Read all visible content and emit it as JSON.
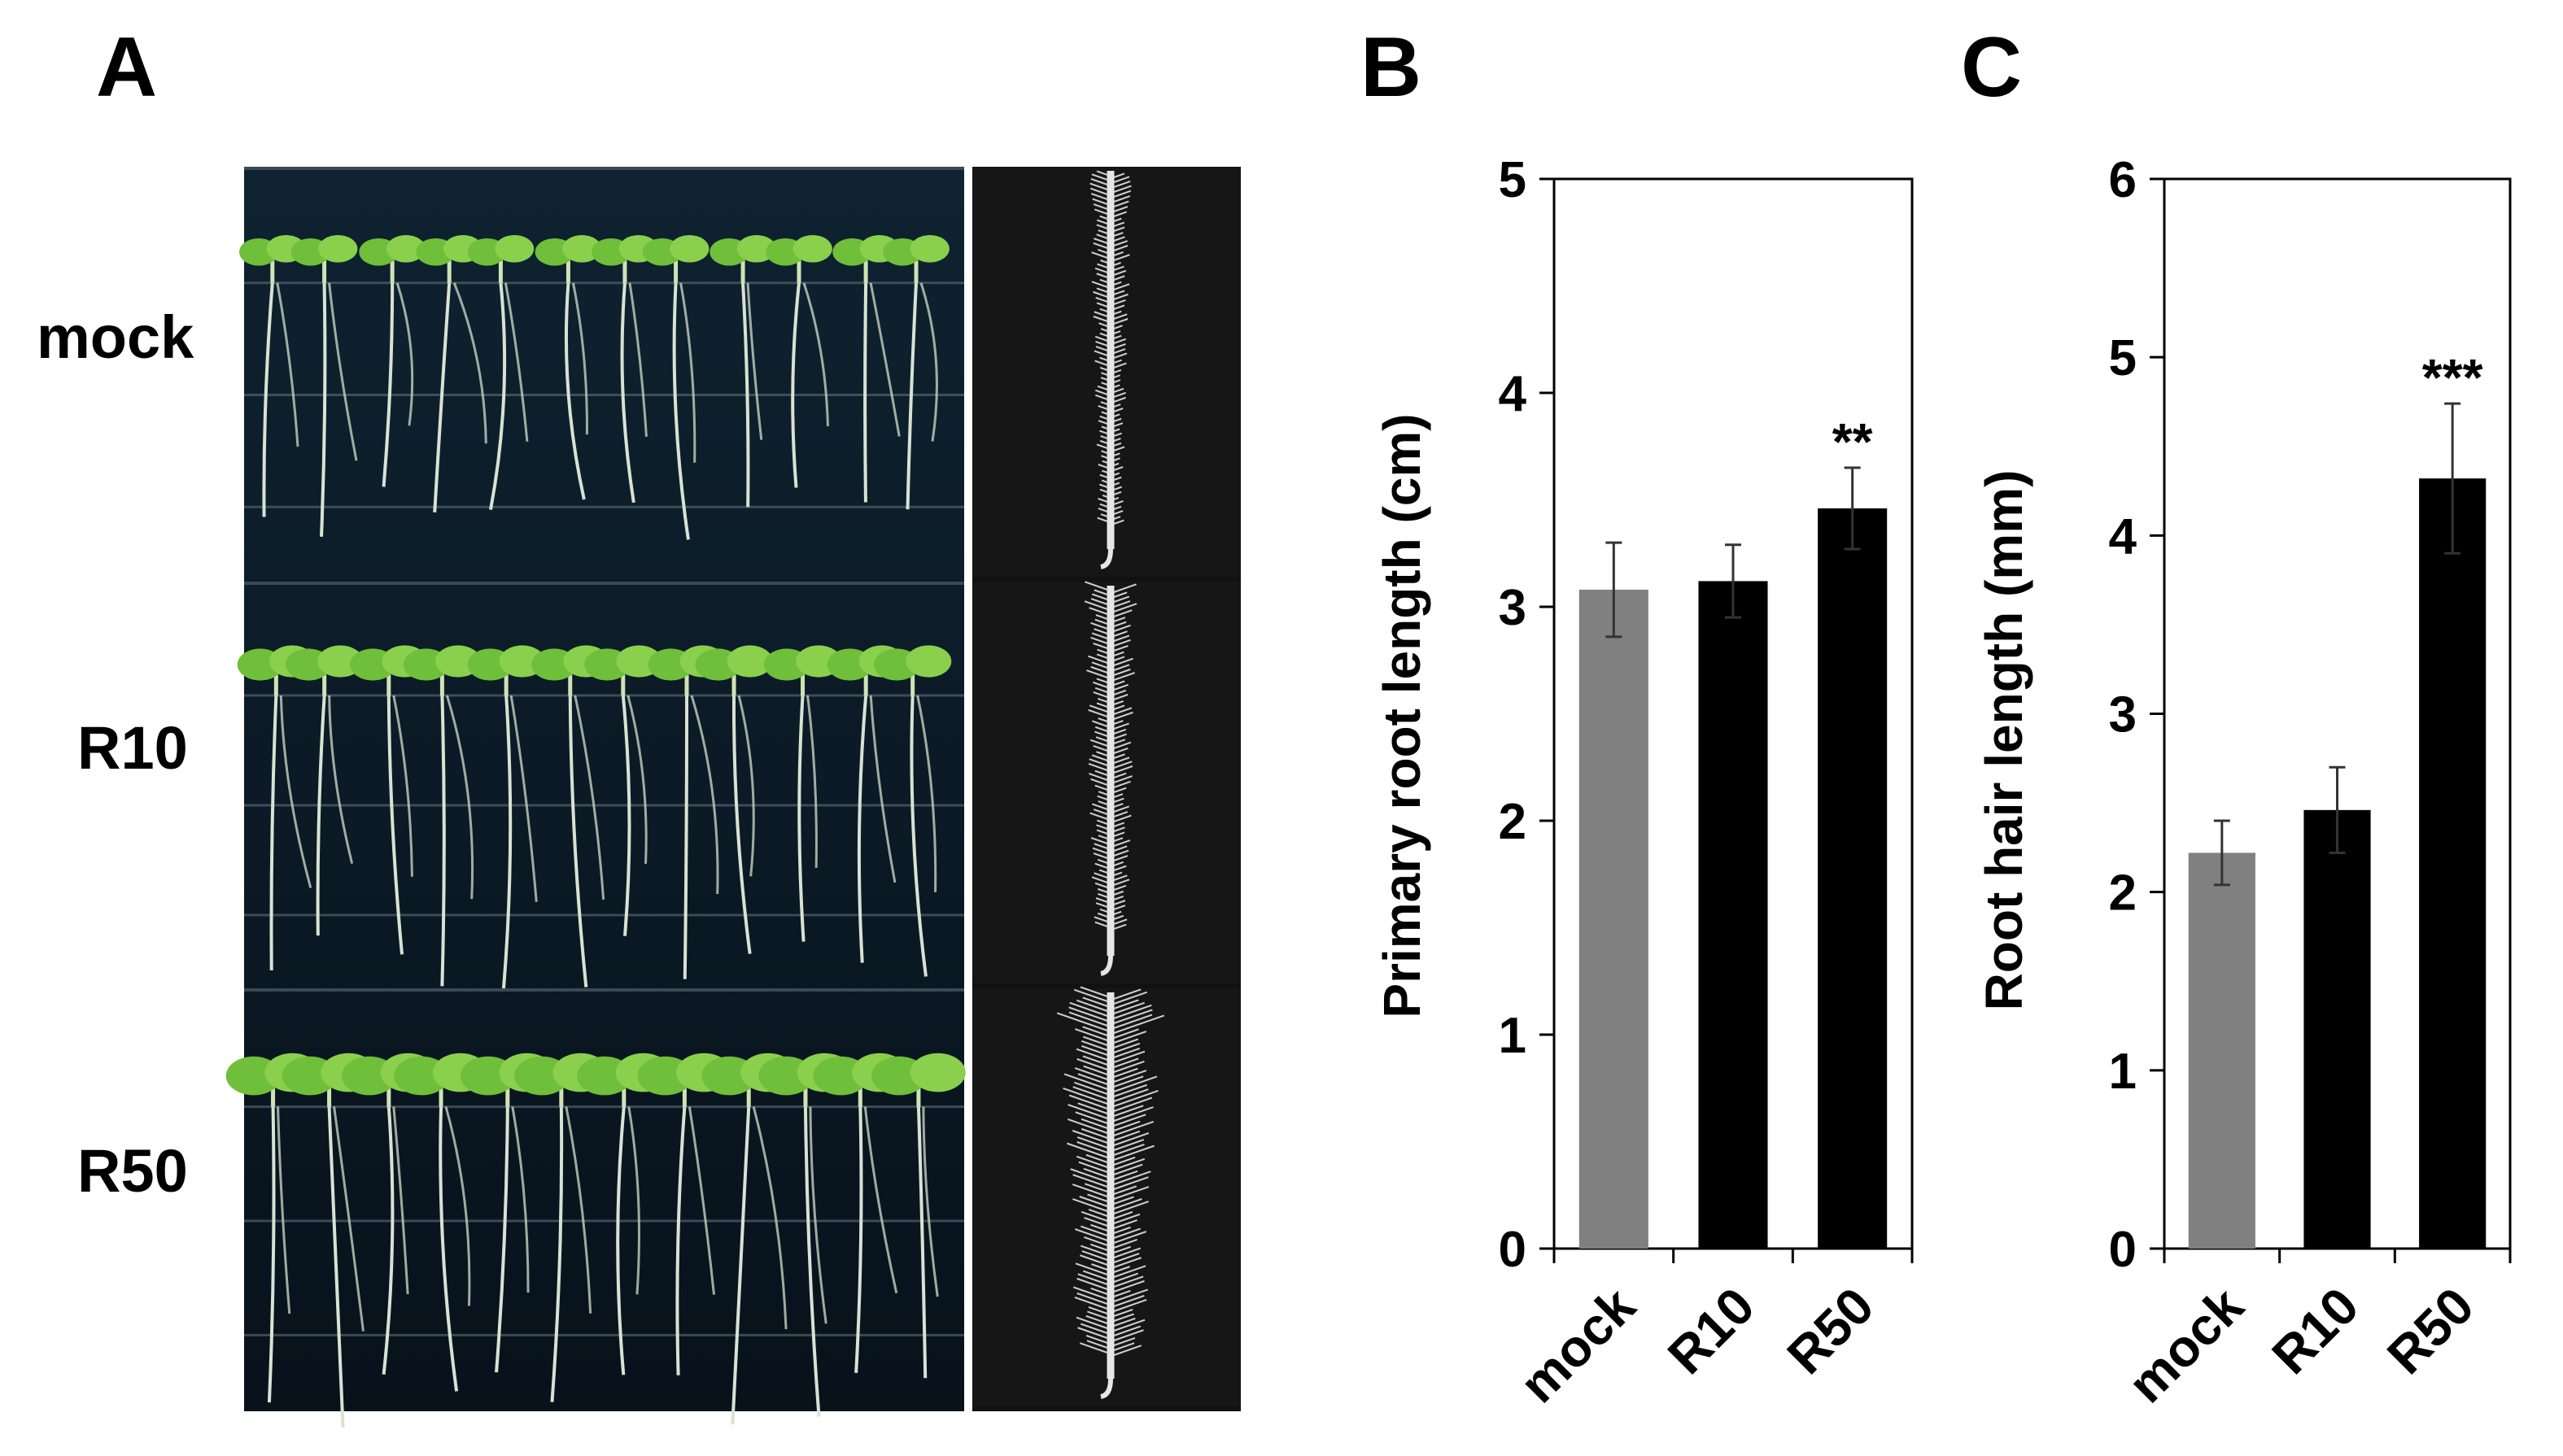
{
  "panels": {
    "a": "A",
    "b": "B",
    "c": "C"
  },
  "photo_rows": [
    "mock",
    "R10",
    "R50"
  ],
  "colors": {
    "mock_bar": "#808080",
    "treated_bar": "#000000",
    "plate_bg": "#0b1620",
    "seedling": "#6fbf3a"
  },
  "chart_data": [
    {
      "type": "bar",
      "categories": [
        "mock",
        "R10",
        "R50"
      ],
      "values": [
        3.08,
        3.12,
        3.46
      ],
      "errors": [
        0.22,
        0.17,
        0.19
      ],
      "significance": [
        "",
        "",
        "**"
      ],
      "title": "",
      "xlabel": "",
      "ylabel": "Primary root length (cm)",
      "ylim": [
        0,
        5
      ],
      "yticks": [
        "0",
        "1",
        "2",
        "3",
        "4",
        "5"
      ],
      "grid": false
    },
    {
      "type": "bar",
      "categories": [
        "mock",
        "R10",
        "R50"
      ],
      "values": [
        2.22,
        2.46,
        4.32
      ],
      "errors": [
        0.18,
        0.24,
        0.42
      ],
      "significance": [
        "",
        "",
        "***"
      ],
      "title": "",
      "xlabel": "",
      "ylabel": "Root hair length (mm)",
      "ylim": [
        0,
        6
      ],
      "yticks": [
        "0",
        "1",
        "2",
        "3",
        "4",
        "5",
        "6"
      ],
      "grid": false
    }
  ]
}
